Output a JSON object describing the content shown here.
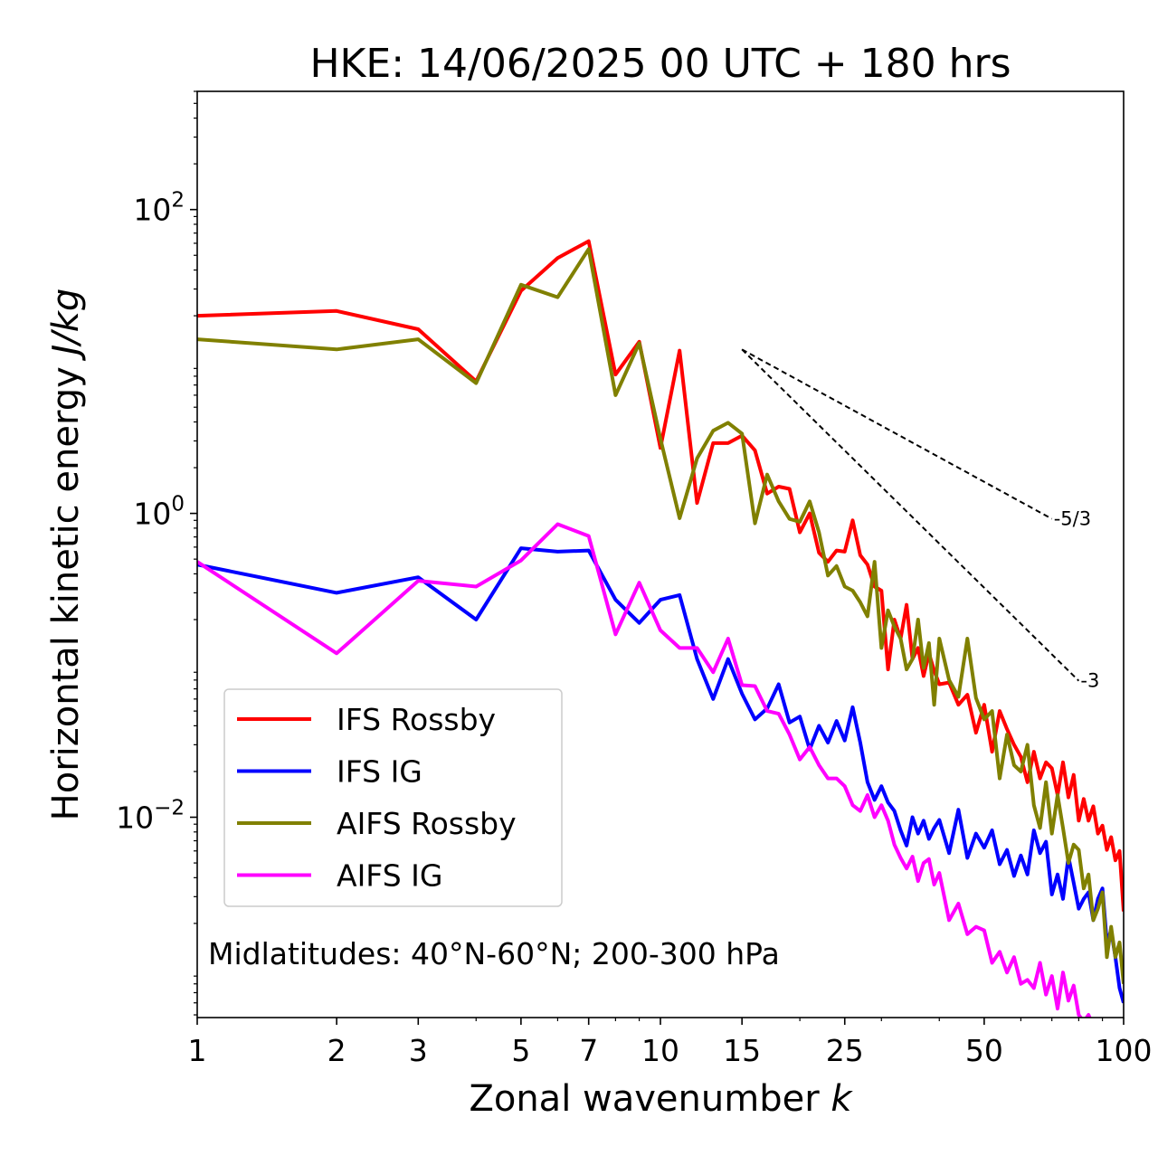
{
  "chart_data": {
    "type": "line",
    "title": "HKE: 14/06/2025 00 UTC + 180 hrs",
    "xlabel_main": "Zonal wavenumber ",
    "xlabel_var": "k",
    "ylabel_main": "Horizontal kinetic energy ",
    "ylabel_unit": "J/kg",
    "xscale": "log",
    "yscale": "log",
    "xlim": [
      1,
      100
    ],
    "ylim": [
      0.00048,
      600
    ],
    "x_ticks": [
      1,
      2,
      3,
      5,
      7,
      10,
      15,
      25,
      50,
      100
    ],
    "x_tick_labels": [
      "1",
      "2",
      "3",
      "5",
      "7",
      "10",
      "15",
      "25",
      "50",
      "100"
    ],
    "y_ticks": [
      {
        "value": 100,
        "base": "10",
        "exp": "2"
      },
      {
        "value": 1,
        "base": "10",
        "exp": "0"
      },
      {
        "value": 0.01,
        "base": "10",
        "exp": "−2"
      }
    ],
    "legend_position": "lower-left",
    "annotation": "Midlatitudes: 40°N-60°N; 200-300 hPa",
    "reference_slopes": [
      {
        "label": "-5/3",
        "slope": -1.6667,
        "x_start": 15,
        "x_end": 70,
        "y_start": 12
      },
      {
        "label": "-3",
        "slope": -3,
        "x_start": 15,
        "x_end": 80,
        "y_start": 12
      }
    ],
    "series": [
      {
        "name": "IFS Rossby",
        "color": "#ff0000",
        "x": [
          1,
          2,
          3,
          4,
          5,
          6,
          7,
          8,
          9,
          10,
          11,
          12,
          13,
          14,
          15,
          16,
          17,
          18,
          19,
          20,
          21,
          22,
          23,
          24,
          25,
          26,
          27,
          28,
          29,
          30,
          31,
          32,
          33,
          34,
          35,
          36,
          37,
          38,
          39,
          40,
          42,
          44,
          46,
          48,
          50,
          52,
          54,
          56,
          58,
          60,
          62,
          64,
          66,
          68,
          70,
          72,
          74,
          76,
          78,
          80,
          82,
          84,
          86,
          88,
          90,
          92,
          94,
          96,
          98,
          100
        ],
        "y": [
          20,
          21.5,
          16.3,
          7.4,
          29.2,
          48,
          62,
          8.2,
          13.5,
          2.7,
          11.8,
          1.17,
          2.9,
          2.9,
          3.25,
          2.6,
          1.35,
          1.5,
          1.45,
          0.75,
          1.0,
          0.55,
          0.48,
          0.57,
          0.56,
          0.9,
          0.53,
          0.46,
          0.33,
          0.31,
          0.094,
          0.2,
          0.15,
          0.25,
          0.11,
          0.13,
          0.085,
          0.12,
          0.092,
          0.075,
          0.077,
          0.055,
          0.064,
          0.036,
          0.055,
          0.027,
          0.05,
          0.038,
          0.03,
          0.025,
          0.017,
          0.027,
          0.018,
          0.023,
          0.021,
          0.014,
          0.023,
          0.0135,
          0.019,
          0.0095,
          0.0132,
          0.0095,
          0.0118,
          0.0078,
          0.0088,
          0.0061,
          0.0074,
          0.0052,
          0.006,
          0.0024
        ]
      },
      {
        "name": "IFS IG",
        "color": "#0000ff",
        "x": [
          1,
          2,
          3,
          4,
          5,
          6,
          7,
          8,
          9,
          10,
          11,
          12,
          13,
          14,
          15,
          16,
          17,
          18,
          19,
          20,
          21,
          22,
          23,
          24,
          25,
          26,
          27,
          28,
          29,
          30,
          31,
          32,
          33,
          34,
          35,
          36,
          37,
          38,
          39,
          40,
          42,
          44,
          46,
          48,
          50,
          52,
          54,
          56,
          58,
          60,
          62,
          64,
          66,
          68,
          70,
          72,
          74,
          76,
          78,
          80,
          82,
          84,
          86,
          88,
          90,
          92,
          94,
          96,
          98,
          100
        ],
        "y": [
          0.46,
          0.3,
          0.38,
          0.2,
          0.59,
          0.56,
          0.57,
          0.27,
          0.19,
          0.27,
          0.29,
          0.11,
          0.06,
          0.11,
          0.065,
          0.044,
          0.052,
          0.075,
          0.042,
          0.046,
          0.028,
          0.04,
          0.031,
          0.043,
          0.032,
          0.053,
          0.031,
          0.017,
          0.013,
          0.016,
          0.0125,
          0.011,
          0.0082,
          0.0065,
          0.01,
          0.0078,
          0.0095,
          0.0072,
          0.0085,
          0.0096,
          0.0058,
          0.0112,
          0.0054,
          0.0078,
          0.0063,
          0.0082,
          0.0049,
          0.0061,
          0.0041,
          0.0056,
          0.0042,
          0.0082,
          0.0058,
          0.0069,
          0.0031,
          0.0042,
          0.0029,
          0.0055,
          0.0037,
          0.0025,
          0.0029,
          0.0032,
          0.0021,
          0.0029,
          0.0034,
          0.0015,
          0.0018,
          0.0012,
          0.00075,
          0.0006
        ]
      },
      {
        "name": "AIFS Rossby",
        "color": "#808000",
        "x": [
          1,
          2,
          3,
          4,
          5,
          6,
          7,
          8,
          9,
          10,
          11,
          12,
          13,
          14,
          15,
          16,
          17,
          18,
          19,
          20,
          21,
          22,
          23,
          24,
          25,
          26,
          27,
          28,
          29,
          30,
          31,
          32,
          33,
          34,
          35,
          36,
          37,
          38,
          39,
          40,
          42,
          44,
          46,
          48,
          50,
          52,
          54,
          56,
          58,
          60,
          62,
          64,
          66,
          68,
          70,
          72,
          74,
          76,
          78,
          80,
          82,
          84,
          86,
          88,
          90,
          92,
          94,
          96,
          98,
          100
        ],
        "y": [
          14,
          12,
          14,
          7.2,
          32,
          26.5,
          55,
          6,
          13.2,
          3.1,
          0.93,
          2.3,
          3.5,
          3.95,
          3.35,
          0.86,
          1.8,
          1.2,
          0.92,
          0.88,
          1.2,
          0.75,
          0.39,
          0.45,
          0.33,
          0.31,
          0.26,
          0.21,
          0.48,
          0.13,
          0.23,
          0.18,
          0.15,
          0.094,
          0.11,
          0.2,
          0.096,
          0.14,
          0.055,
          0.15,
          0.08,
          0.062,
          0.15,
          0.061,
          0.044,
          0.05,
          0.018,
          0.035,
          0.022,
          0.02,
          0.03,
          0.012,
          0.0085,
          0.017,
          0.0078,
          0.014,
          0.0085,
          0.005,
          0.0066,
          0.0061,
          0.0034,
          0.0042,
          0.0021,
          0.0025,
          0.0032,
          0.0012,
          0.0019,
          0.0012,
          0.0015,
          0.0008
        ]
      },
      {
        "name": "AIFS IG",
        "color": "#ff00ff",
        "x": [
          1,
          2,
          3,
          4,
          5,
          6,
          7,
          8,
          9,
          10,
          11,
          12,
          13,
          14,
          15,
          16,
          17,
          18,
          19,
          20,
          21,
          22,
          23,
          24,
          25,
          26,
          27,
          28,
          29,
          30,
          31,
          32,
          33,
          34,
          35,
          36,
          37,
          38,
          39,
          40,
          42,
          44,
          46,
          48,
          50,
          52,
          54,
          56,
          58,
          60,
          62,
          64,
          66,
          68,
          70,
          72,
          74,
          76,
          78,
          80,
          82,
          84,
          86,
          88,
          90,
          92,
          94,
          96,
          98,
          100
        ],
        "y": [
          0.48,
          0.12,
          0.36,
          0.33,
          0.49,
          0.85,
          0.71,
          0.16,
          0.35,
          0.17,
          0.13,
          0.13,
          0.09,
          0.15,
          0.074,
          0.073,
          0.05,
          0.048,
          0.035,
          0.024,
          0.029,
          0.022,
          0.018,
          0.018,
          0.016,
          0.012,
          0.011,
          0.014,
          0.01,
          0.012,
          0.0095,
          0.0066,
          0.0054,
          0.0046,
          0.0055,
          0.0038,
          0.005,
          0.0053,
          0.0036,
          0.0043,
          0.0021,
          0.0027,
          0.0017,
          0.0019,
          0.0018,
          0.0011,
          0.0013,
          0.00095,
          0.0012,
          0.0008,
          0.00085,
          0.00075,
          0.0011,
          0.00068,
          0.0009,
          0.00055,
          0.00095,
          0.00062,
          0.00078,
          0.0005,
          0.00045,
          0.0005,
          0.00042,
          0.00038,
          0.00042,
          0.00035,
          0.00038,
          0.0003,
          0.00032,
          0.00028
        ]
      }
    ]
  }
}
